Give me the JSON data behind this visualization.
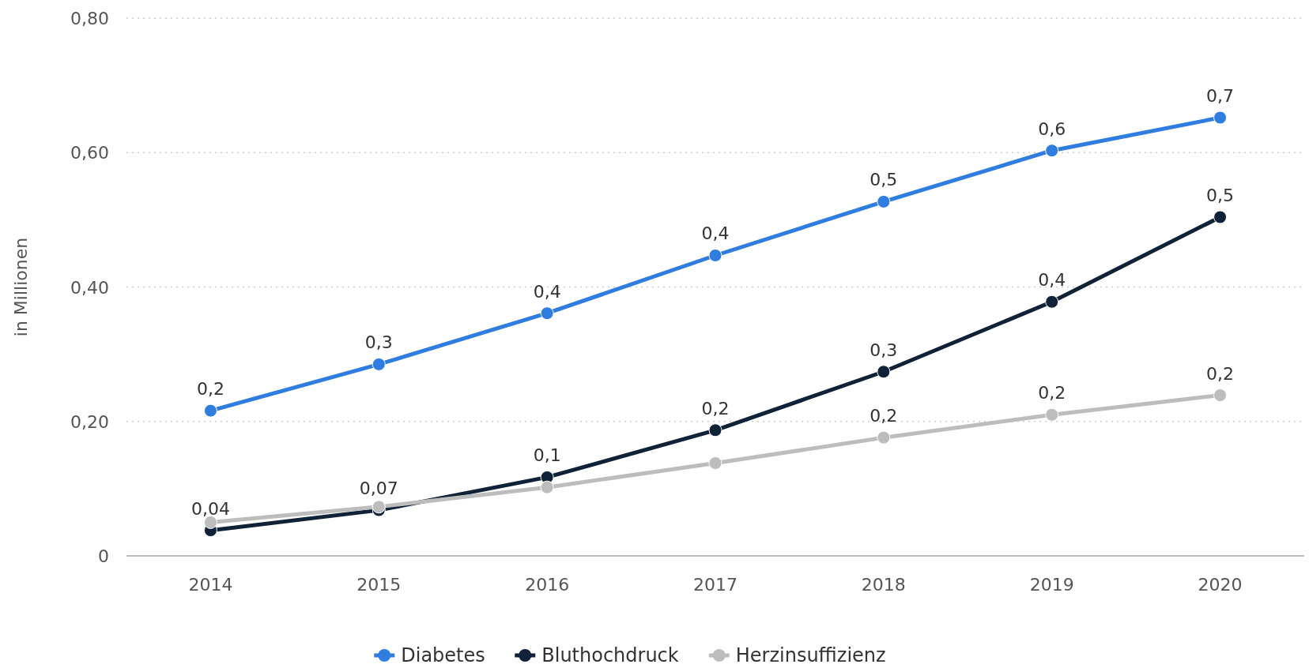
{
  "chart_data": {
    "type": "line",
    "ylabel": "in Millionen",
    "categories": [
      "2014",
      "2015",
      "2016",
      "2017",
      "2018",
      "2019",
      "2020"
    ],
    "series": [
      {
        "name": "Diabetes",
        "color": "#2f7de1",
        "values": [
          0.216,
          0.285,
          0.361,
          0.447,
          0.527,
          0.603,
          0.652
        ],
        "value_labels": [
          "0,2",
          "0,3",
          "0,4",
          "0,4",
          "0,5",
          "0,6",
          "0,7"
        ]
      },
      {
        "name": "Bluthochdruck",
        "color": "#0f2237",
        "values": [
          0.038,
          0.068,
          0.117,
          0.187,
          0.274,
          0.378,
          0.504
        ],
        "value_labels": [
          "0,04",
          "0,07",
          "0,1",
          "0,2",
          "0,3",
          "0,4",
          "0,5"
        ]
      },
      {
        "name": "Herzinsuffizienz",
        "color": "#bdbdbd",
        "values": [
          0.05,
          0.073,
          0.102,
          0.138,
          0.176,
          0.21,
          0.239
        ],
        "value_labels": [
          null,
          null,
          null,
          null,
          "0,2",
          "0,2",
          "0,2"
        ]
      }
    ],
    "ylim": [
      0,
      0.8
    ],
    "yticks": [
      {
        "value": 0,
        "label": "0"
      },
      {
        "value": 0.2,
        "label": "0,20"
      },
      {
        "value": 0.4,
        "label": "0,40"
      },
      {
        "value": 0.6,
        "label": "0,60"
      },
      {
        "value": 0.8,
        "label": "0,80"
      }
    ],
    "grid": "y",
    "legend": "bottom",
    "marker": "circle",
    "line_style": "solid"
  }
}
